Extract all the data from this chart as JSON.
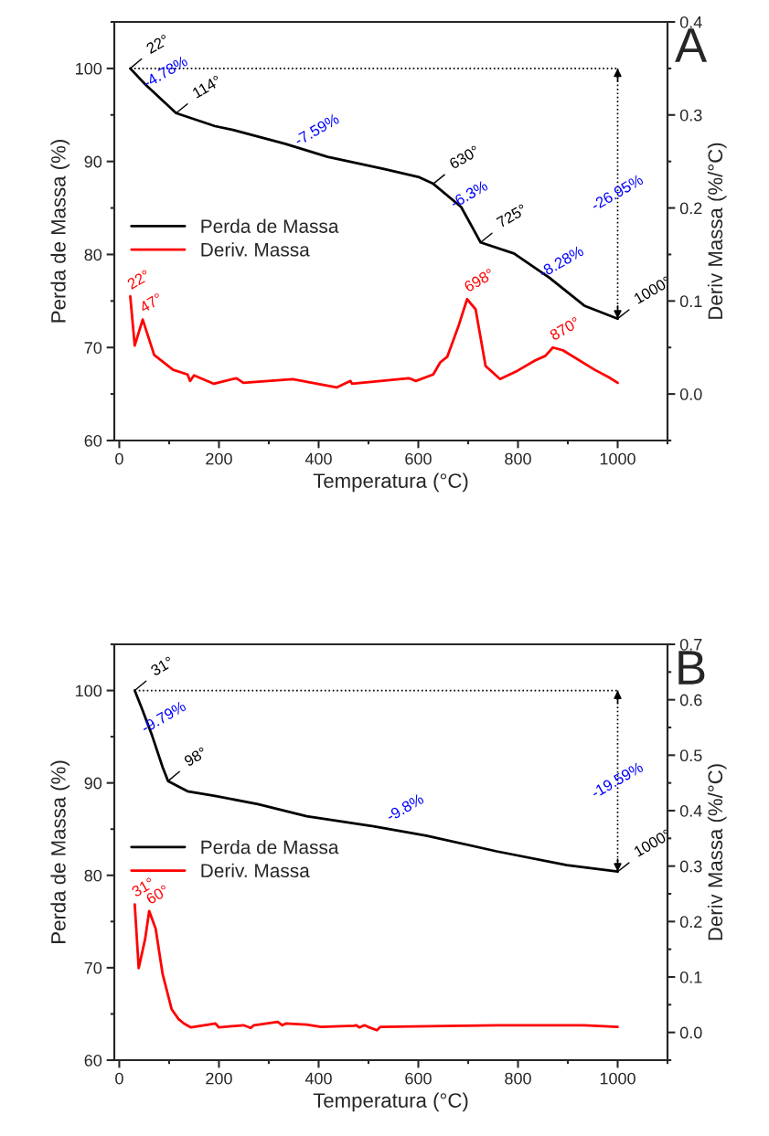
{
  "chart_data": [
    {
      "type": "line",
      "title": "A",
      "xlabel": "Temperatura (°C)",
      "ylabel": "Perda de Massa (%)",
      "y2label": "Deriv Massa (%/°C)",
      "xlim": [
        -10,
        1100
      ],
      "xticks": [
        0,
        200,
        400,
        600,
        800,
        1000
      ],
      "ylim": [
        60,
        105
      ],
      "yticks": [
        60,
        70,
        80,
        90,
        100
      ],
      "y2lim": [
        -0.05,
        0.4
      ],
      "y2ticks": [
        {
          "value": 0,
          "label": "0.0"
        },
        0.1,
        0.2,
        0.3,
        0.4
      ],
      "legend": "center left",
      "grid": false,
      "marker": "none",
      "line_style": "solid",
      "series": [
        {
          "name": "Perda de Massa",
          "color": "#000000",
          "x": [
            22,
            52,
            114,
            192,
            228,
            333,
            418,
            531,
            602,
            630,
            686,
            725,
            792,
            863,
            933,
            1000
          ],
          "values": [
            100,
            98.3,
            95.2,
            93.8,
            93.4,
            91.9,
            90.5,
            89.2,
            88.3,
            87.6,
            85.1,
            81.3,
            80.1,
            77.5,
            74.5,
            73.1
          ]
        },
        {
          "name": "Deriv. Massa",
          "color": "#ff0000",
          "axis": "y2",
          "x": [
            22,
            31,
            47,
            70,
            108,
            137,
            142,
            150,
            190,
            235,
            249,
            348,
            436,
            464,
            467,
            581,
            595,
            630,
            644,
            658,
            680,
            698,
            715,
            735,
            764,
            799,
            834,
            855,
            870,
            890,
            954,
            982,
            1000
          ],
          "values": [
            0.105,
            0.052,
            0.08,
            0.042,
            0.026,
            0.021,
            0.014,
            0.02,
            0.011,
            0.017,
            0.012,
            0.016,
            0.007,
            0.014,
            0.011,
            0.017,
            0.014,
            0.021,
            0.034,
            0.04,
            0.072,
            0.102,
            0.091,
            0.03,
            0.016,
            0.025,
            0.036,
            0.041,
            0.05,
            0.047,
            0.026,
            0.018,
            0.012
          ]
        }
      ],
      "ref_lines": [
        {
          "axis": "y",
          "value": 100,
          "line_style": "dotted",
          "color": "#000000"
        },
        {
          "axis": "x",
          "value": 1000,
          "line_style": "dotted",
          "color": "#000000"
        }
      ],
      "annotations": [
        {
          "text": "22°",
          "x": 22,
          "y": 100
        },
        {
          "text": "114°",
          "x": 114,
          "y": 95.2
        },
        {
          "text": "630°",
          "x": 630,
          "y": 87.6
        },
        {
          "text": "725°",
          "x": 725,
          "y": 81.3
        },
        {
          "text": "1000°",
          "x": 1000,
          "y": 73.1
        },
        {
          "text": "22°",
          "x": 22,
          "y": 75.5
        },
        {
          "text": "47°",
          "x": 47,
          "y": 73.0
        },
        {
          "text": "698°",
          "x": 698,
          "y": 75.2
        },
        {
          "text": "870°",
          "x": 870,
          "y": 70.0
        },
        "-4.78%",
        "-7.59%",
        "-6.3%",
        "-8.28%",
        "-26.95%"
      ]
    },
    {
      "type": "line",
      "title": "B",
      "xlabel": "Temperatura (°C)",
      "ylabel": "Perda de Massa (%)",
      "y2label": "Deriv Massa (%/°C)",
      "xlim": [
        -10,
        1100
      ],
      "xticks": [
        0,
        200,
        400,
        600,
        800,
        1000
      ],
      "ylim": [
        60,
        105
      ],
      "yticks": [
        60,
        70,
        80,
        90,
        100
      ],
      "y2lim": [
        -0.05,
        0.7
      ],
      "y2ticks": [
        {
          "value": 0,
          "label": "0.0"
        },
        0.1,
        0.2,
        0.3,
        0.4,
        0.5,
        0.6,
        0.7
      ],
      "legend": "center left",
      "grid": false,
      "marker": "none",
      "line_style": "solid",
      "series": [
        {
          "name": "Perda de Massa",
          "color": "#000000",
          "x": [
            31,
            45,
            66,
            87,
            98,
            137,
            192,
            278,
            376,
            510,
            616,
            757,
            898,
            1000
          ],
          "values": [
            100,
            98.1,
            95.1,
            91.7,
            90.2,
            89.1,
            88.6,
            87.7,
            86.4,
            85.3,
            84.3,
            82.6,
            81.1,
            80.4
          ]
        },
        {
          "name": "Deriv. Massa",
          "color": "#ff0000",
          "axis": "y2",
          "x": [
            31,
            39,
            52,
            60,
            73,
            87,
            105,
            119,
            130,
            144,
            193,
            200,
            249,
            264,
            270,
            318,
            327,
            334,
            376,
            405,
            471,
            475,
            482,
            492,
            499,
            517,
            524,
            686,
            757,
            933,
            1000
          ],
          "values": [
            0.231,
            0.116,
            0.169,
            0.219,
            0.187,
            0.105,
            0.042,
            0.024,
            0.016,
            0.009,
            0.016,
            0.009,
            0.013,
            0.008,
            0.013,
            0.019,
            0.013,
            0.016,
            0.014,
            0.01,
            0.012,
            0.013,
            0.009,
            0.013,
            0.01,
            0.004,
            0.01,
            0.012,
            0.013,
            0.013,
            0.01
          ]
        }
      ],
      "ref_lines": [
        {
          "axis": "y",
          "value": 100,
          "line_style": "dotted",
          "color": "#000000"
        },
        {
          "axis": "x",
          "value": 1000,
          "line_style": "dotted",
          "color": "#000000"
        }
      ],
      "annotations": [
        {
          "text": "31°",
          "x": 31,
          "y": 100
        },
        {
          "text": "98°",
          "x": 98,
          "y": 90.2
        },
        {
          "text": "1000°",
          "x": 1000,
          "y": 80.4
        },
        {
          "text": "31°",
          "x": 31,
          "y": 76.9
        },
        {
          "text": "60°",
          "x": 60,
          "y": 76.1
        },
        "-9.79%",
        "-9.8%",
        "-19.59%"
      ]
    }
  ]
}
